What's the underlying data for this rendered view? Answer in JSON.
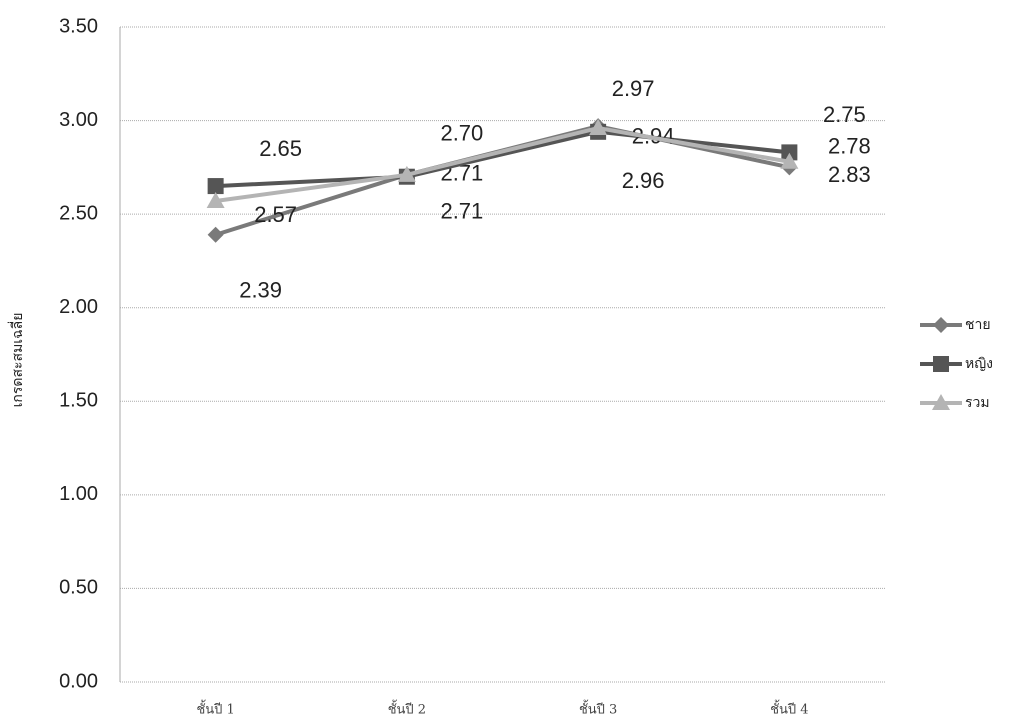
{
  "chart_data": {
    "type": "line",
    "y_label": "เกรดสะสมเฉลี่ย",
    "categories": [
      "ชั้นปี 1",
      "ชั้นปี 2",
      "ชั้นปี 3",
      "ชั้นปี 4"
    ],
    "series": [
      {
        "name": "ชาย",
        "color": "#7a7a7a",
        "marker": "diamond",
        "values": [
          2.39,
          2.71,
          2.97,
          2.75
        ],
        "value_labels": [
          "2.39",
          "2.71",
          "2.97",
          "2.75"
        ]
      },
      {
        "name": "หญิง",
        "color": "#555555",
        "marker": "square",
        "values": [
          2.65,
          2.7,
          2.94,
          2.83
        ],
        "value_labels": [
          "2.65",
          "2.70",
          "2.94",
          "2.83"
        ]
      },
      {
        "name": "รวม",
        "color": "#b4b4b4",
        "marker": "triangle",
        "values": [
          2.57,
          2.71,
          2.96,
          2.78
        ],
        "value_labels": [
          "2.57",
          "2.71",
          "2.96",
          "2.78"
        ]
      }
    ],
    "ylim": [
      0,
      3.5
    ],
    "yticks": [
      {
        "value": 0,
        "label": "0.00"
      },
      {
        "value": 0.5,
        "label": "0.50"
      },
      {
        "value": 1,
        "label": "1.00"
      },
      {
        "value": 1.5,
        "label": "1.50"
      },
      {
        "value": 2,
        "label": "2.00"
      },
      {
        "value": 2.5,
        "label": "2.50"
      },
      {
        "value": 3,
        "label": "3.00"
      },
      {
        "value": 3.5,
        "label": "3.50"
      }
    ],
    "grid": true
  }
}
